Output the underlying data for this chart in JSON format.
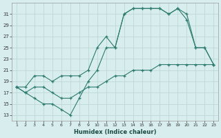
{
  "xlabel": "Humidex (Indice chaleur)",
  "x": [
    1,
    2,
    3,
    4,
    5,
    6,
    7,
    8,
    9,
    10,
    11,
    12,
    13,
    14,
    15,
    16,
    17,
    18,
    19,
    20,
    21,
    22,
    23
  ],
  "y_bot": [
    18,
    17,
    18,
    18,
    17,
    16,
    16,
    17,
    18,
    18,
    19,
    20,
    20,
    21,
    21,
    21,
    22,
    22,
    22,
    22,
    22,
    22,
    22
  ],
  "y_mid": [
    18,
    17,
    16,
    15,
    15,
    14,
    13,
    16,
    19,
    21,
    25,
    25,
    31,
    32,
    32,
    32,
    32,
    31,
    32,
    30,
    25,
    25,
    22
  ],
  "y_top": [
    18,
    18,
    20,
    20,
    19,
    20,
    20,
    20,
    21,
    25,
    27,
    25,
    31,
    32,
    32,
    32,
    32,
    31,
    32,
    31,
    25,
    25,
    22
  ],
  "line_color": "#2d7a6e",
  "bg_color": "#d8eeee",
  "grid_color": "#b8d4d4",
  "ylim_min": 12,
  "ylim_max": 33,
  "yticks": [
    13,
    15,
    17,
    19,
    21,
    23,
    25,
    27,
    29,
    31
  ],
  "xlim_min": 0.5,
  "xlim_max": 23.5,
  "xticks": [
    1,
    2,
    3,
    4,
    5,
    6,
    7,
    8,
    9,
    10,
    11,
    12,
    13,
    14,
    15,
    16,
    17,
    18,
    19,
    20,
    21,
    22,
    23
  ]
}
